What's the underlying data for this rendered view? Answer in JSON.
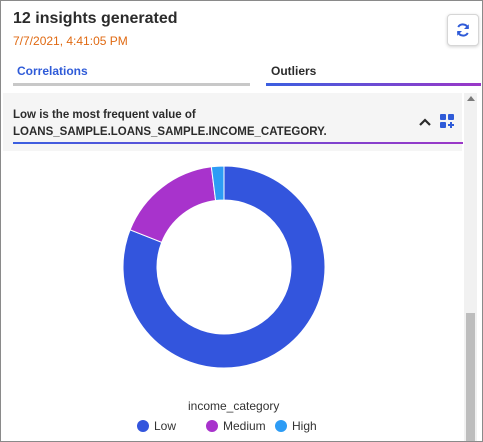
{
  "header": {
    "title": "12 insights generated",
    "timestamp": "7/7/2021, 4:41:05 PM",
    "refresh_icon": "refresh-icon"
  },
  "tabs": [
    {
      "label": "Correlations"
    },
    {
      "label": "Outliers"
    }
  ],
  "insight": {
    "line1": "Low is the most frequent value of",
    "line2": "LOANS_SAMPLE.LOANS_SAMPLE.INCOME_CATEGORY.",
    "collapse_icon": "chevron-up-icon",
    "grid_icon": "add-to-dashboard-icon"
  },
  "chart_data": {
    "type": "pie",
    "title": "",
    "legend_title": "income_category",
    "legend_position": "bottom",
    "categories": [
      "Low",
      "Medium",
      "High"
    ],
    "values": [
      81,
      17,
      2
    ],
    "colors": [
      "#3355dd",
      "#a833cc",
      "#2d9cf5"
    ]
  }
}
